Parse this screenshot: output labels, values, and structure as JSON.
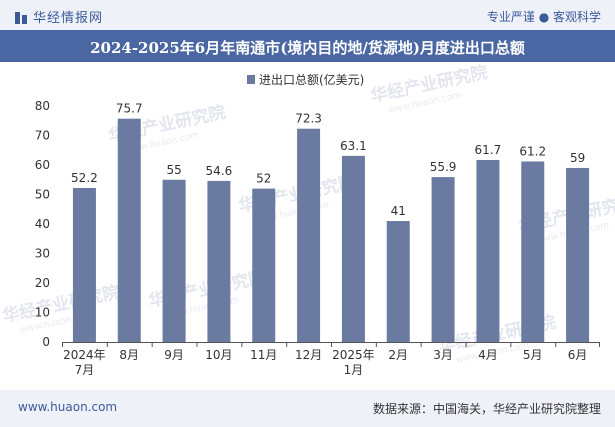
{
  "header": {
    "brand": "华经情报网",
    "tagline": "专业严谨 ● 客观科学"
  },
  "chart_data": {
    "type": "bar",
    "title": "2024-2025年6月年南通市(境内目的地/货源地)月度进出口总额",
    "categories": [
      "2024年\n7月",
      "8月",
      "9月",
      "10月",
      "11月",
      "12月",
      "2025年\n1月",
      "2月",
      "3月",
      "4月",
      "5月",
      "6月"
    ],
    "series": [
      {
        "name": "进出口总额(亿美元)",
        "values": [
          52.2,
          75.7,
          55,
          54.6,
          52,
          72.3,
          63.1,
          41,
          55.9,
          61.7,
          61.2,
          59
        ]
      }
    ],
    "ylim": [
      0,
      80
    ],
    "yticks": [
      0,
      10,
      20,
      30,
      40,
      50,
      60,
      70,
      80
    ],
    "grid": false,
    "legend_position": "top-center",
    "bar_color": "#6b7aa1"
  },
  "watermarks": [
    "华经产业研究院",
    "www.huaon.com"
  ],
  "footer": {
    "site": "www.huaon.com",
    "source": "数据来源：中国海关，华经产业研究院整理"
  }
}
